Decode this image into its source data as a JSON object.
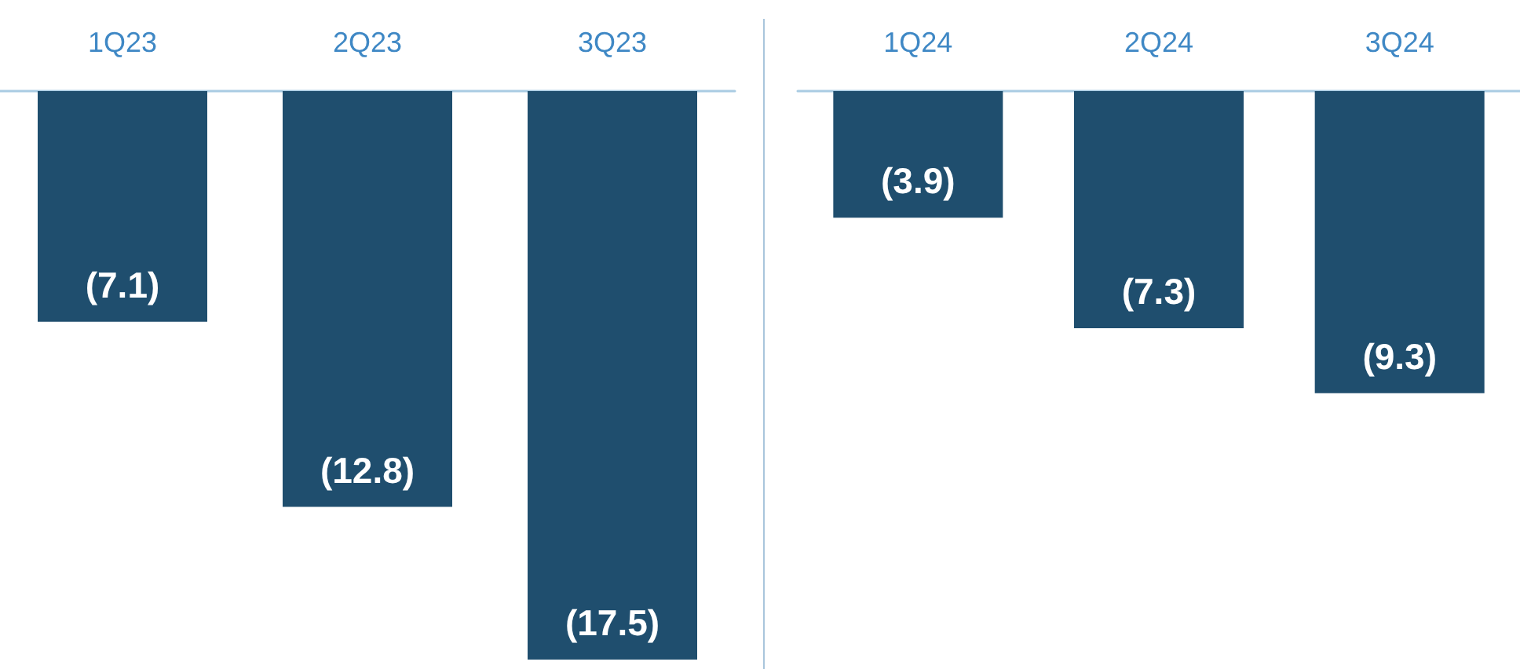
{
  "chart_data": [
    {
      "type": "bar",
      "categories": [
        "1Q23",
        "2Q23",
        "3Q23"
      ],
      "values": [
        -7.1,
        -12.8,
        -17.5
      ],
      "value_labels": [
        "(7.1)",
        "(12.8)",
        "(17.5)"
      ],
      "color": "#1f4e6e",
      "tick_labels": "x",
      "grid": false
    },
    {
      "type": "bar",
      "categories": [
        "1Q24",
        "2Q24",
        "3Q24"
      ],
      "values": [
        -3.9,
        -7.3,
        -9.3
      ],
      "value_labels": [
        "(3.9)",
        "(7.3)",
        "(9.3)"
      ],
      "color": "#1f4e6e",
      "tick_labels": "x",
      "grid": false
    }
  ]
}
